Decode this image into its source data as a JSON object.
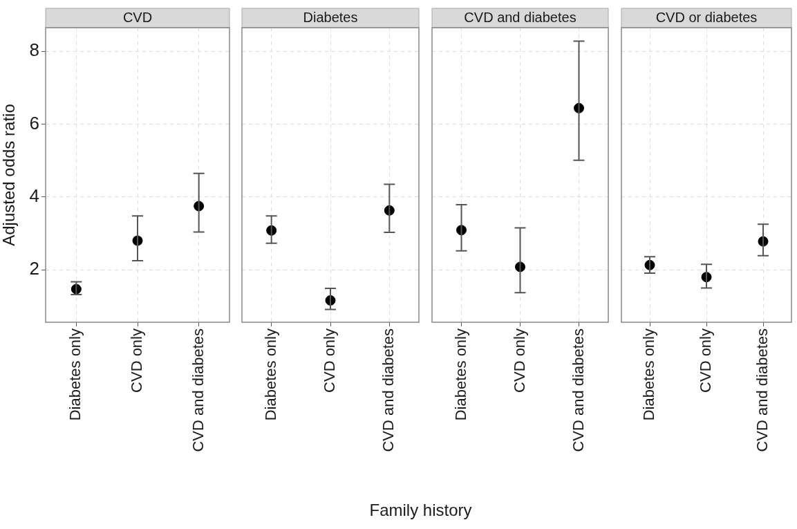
{
  "chart_data": [
    {
      "type": "scatter",
      "title": "CVD",
      "ylabel": "Adjusted odds ratio",
      "categories": [
        "Diabetes only",
        "CVD only",
        "CVD and diabetes"
      ],
      "values": [
        1.47,
        2.8,
        3.75
      ],
      "errors": [
        [
          1.32,
          1.67
        ],
        [
          2.25,
          3.48
        ],
        [
          3.04,
          4.65
        ]
      ],
      "color": "#000000",
      "marker": "circle",
      "grid": true,
      "ylim": [
        0.56,
        8.65
      ],
      "yticks": [
        2,
        4,
        6,
        8
      ]
    },
    {
      "type": "scatter",
      "title": "Diabetes",
      "xlabel": "Family history",
      "categories": [
        "Diabetes only",
        "CVD only",
        "CVD and diabetes"
      ],
      "values": [
        3.08,
        1.16,
        3.63
      ],
      "errors": [
        [
          2.73,
          3.48
        ],
        [
          0.91,
          1.49
        ],
        [
          3.03,
          4.35
        ]
      ],
      "color": "#000000",
      "marker": "circle",
      "grid": true,
      "ylim": [
        0.56,
        8.65
      ],
      "yticks": [
        2,
        4,
        6,
        8
      ],
      "tick_labels": "x"
    },
    {
      "type": "scatter",
      "title": "CVD and diabetes",
      "categories": [
        "Diabetes only",
        "CVD only",
        "CVD and diabetes"
      ],
      "values": [
        3.09,
        2.08,
        6.44
      ],
      "errors": [
        [
          2.52,
          3.79
        ],
        [
          1.37,
          3.15
        ],
        [
          5.01,
          8.28
        ]
      ],
      "color": "#000000",
      "marker": "circle",
      "grid": true,
      "ylim": [
        0.56,
        8.65
      ],
      "yticks": [
        2,
        4,
        6,
        8
      ],
      "tick_labels": "x"
    },
    {
      "type": "scatter",
      "title": "CVD or diabetes",
      "categories": [
        "Diabetes only",
        "CVD only",
        "CVD and diabetes"
      ],
      "values": [
        2.13,
        1.8,
        2.78
      ],
      "errors": [
        [
          1.91,
          2.36
        ],
        [
          1.5,
          2.15
        ],
        [
          2.39,
          3.25
        ]
      ],
      "color": "#000000",
      "marker": "circle",
      "grid": true,
      "ylim": [
        0.56,
        8.65
      ],
      "yticks": [
        2,
        4,
        6,
        8
      ],
      "tick_labels": "x"
    }
  ]
}
